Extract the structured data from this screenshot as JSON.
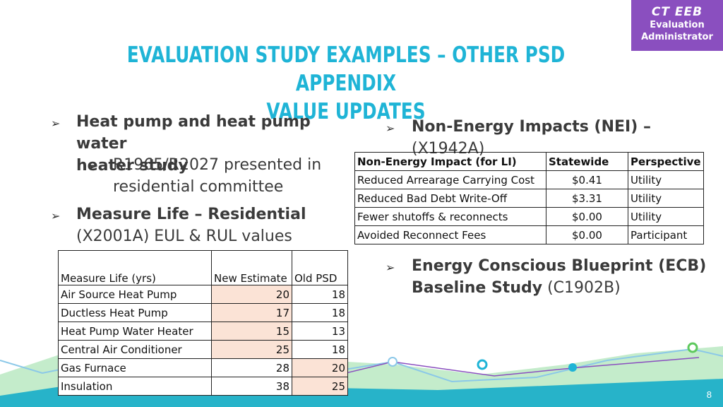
{
  "badge": {
    "line1": "CT EEB",
    "line2": "Evaluation",
    "line3": "Administrator"
  },
  "title": {
    "line1": "EVALUATION STUDY EXAMPLES – OTHER PSD APPENDIX",
    "line2": "VALUE UPDATES"
  },
  "left_bullets": {
    "b1_line1": "Heat pump and heat pump water",
    "b1_line2": "heater study",
    "b1_sub_line1": "R1965/R2027 presented in",
    "b1_sub_line2": "residential committee",
    "b2_bold": "Measure Life – Residential",
    "b2_line2": "(X2001A)  EUL & RUL values"
  },
  "right_bullets": {
    "nei_bold": "Non-Energy Impacts (NEI) –",
    "nei_code": " (X1942A)",
    "ecb_bold1": "Energy Conscious Blueprint (ECB)",
    "ecb_bold2": "Baseline Study",
    "ecb_code": " (C1902B)"
  },
  "nei_table": {
    "headers": [
      "Non-Energy Impact (for LI)",
      "Statewide",
      "Perspective"
    ],
    "rows": [
      [
        "Reduced Arrearage Carrying Cost",
        "$0.41",
        "Utility"
      ],
      [
        "Reduced Bad Debt Write-Off",
        "$3.31",
        "Utility"
      ],
      [
        "Fewer shutoffs & reconnects",
        "$0.00",
        "Utility"
      ],
      [
        "Avoided Reconnect Fees",
        "$0.00",
        "Participant"
      ]
    ]
  },
  "ml_table": {
    "headers": [
      "Measure Life (yrs)",
      "New Estimate",
      "Old PSD"
    ],
    "rows": [
      [
        "Air Source Heat Pump",
        "20",
        "18"
      ],
      [
        "Ductless Heat Pump",
        "17",
        "18"
      ],
      [
        "Heat Pump Water Heater",
        "15",
        "13"
      ],
      [
        "Central Air Conditioner",
        "25",
        "18"
      ],
      [
        "Gas Furnace",
        "28",
        "20"
      ],
      [
        "Insulation",
        "38",
        "25"
      ]
    ]
  },
  "page_number": "8",
  "colors": {
    "title": "#1fb4d6",
    "badge": "#8a4fbf",
    "highlight": "#fbe3d6"
  }
}
